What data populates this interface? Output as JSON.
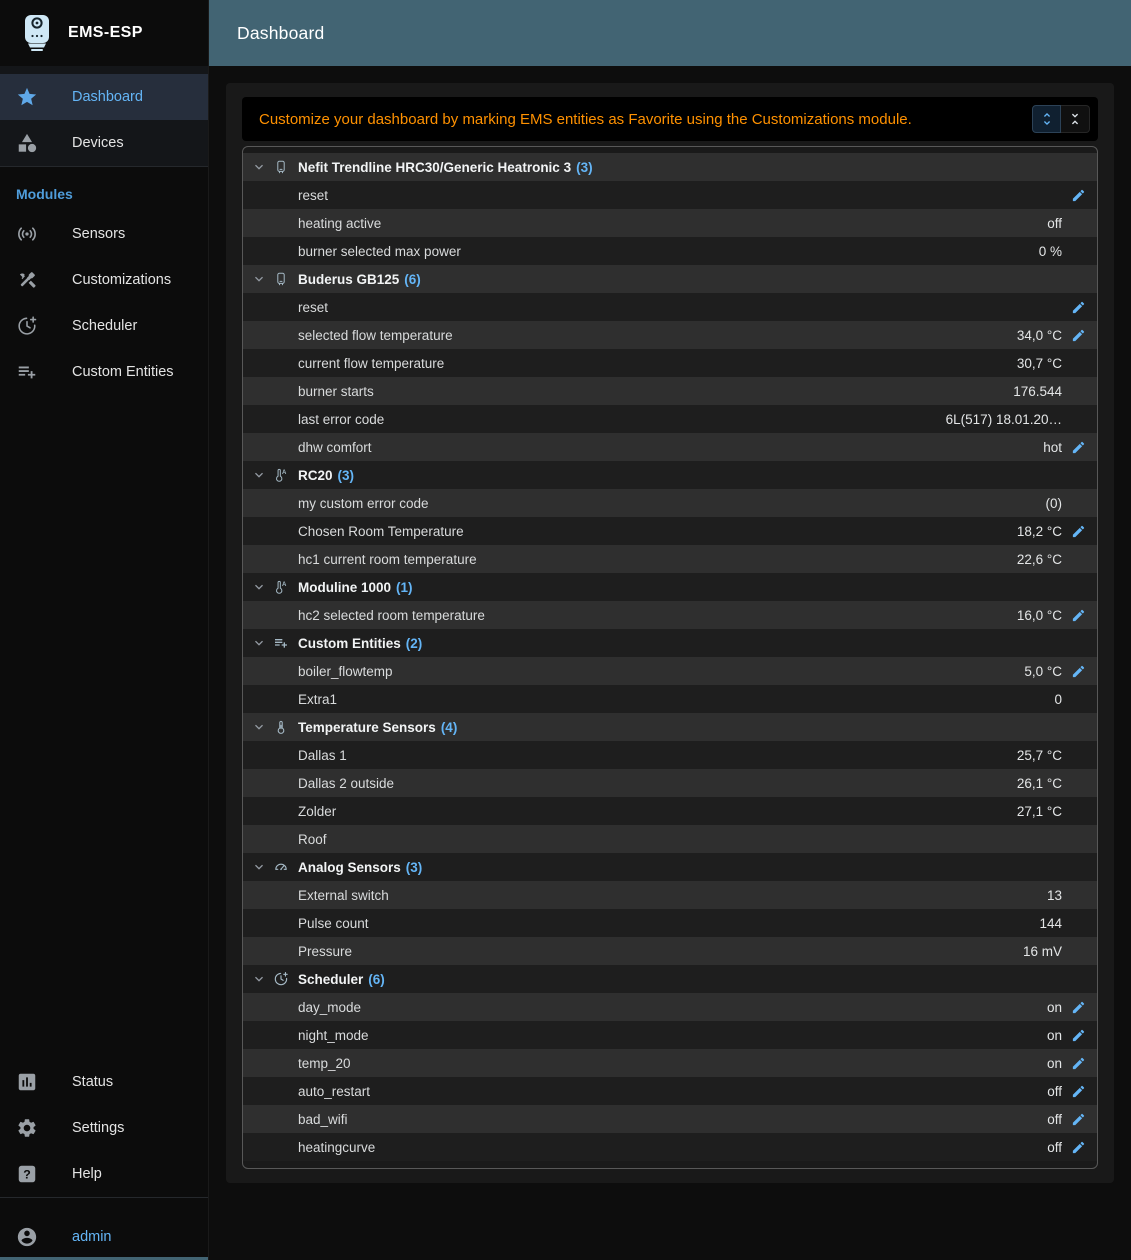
{
  "sidebar": {
    "app_title": "EMS-ESP",
    "modules_label": "Modules",
    "main_items": [
      {
        "label": "Dashboard",
        "icon": "star",
        "selected": true
      },
      {
        "label": "Devices",
        "icon": "category",
        "selected": false
      }
    ],
    "module_items": [
      {
        "label": "Sensors",
        "icon": "sensors"
      },
      {
        "label": "Customizations",
        "icon": "construction"
      },
      {
        "label": "Scheduler",
        "icon": "more-time"
      },
      {
        "label": "Custom Entities",
        "icon": "playlist-add"
      }
    ],
    "bottom_items": [
      {
        "label": "Status",
        "icon": "bar-chart"
      },
      {
        "label": "Settings",
        "icon": "gear"
      },
      {
        "label": "Help",
        "icon": "help"
      }
    ],
    "user": {
      "label": "admin",
      "icon": "account-circle"
    }
  },
  "topbar": {
    "title": "Dashboard"
  },
  "alert": {
    "message": "Customize your dashboard by marking EMS entities as Favorite using the Customizations module.",
    "expand_all_selected": true
  },
  "colors": {
    "accent_blue": "#64b5f6",
    "topbar_teal": "#426473",
    "alert_orange": "#ff9100",
    "row_light": "#2f2f2f",
    "row_dark": "#1e1e1e"
  },
  "dashboard": {
    "groups": [
      {
        "label": "Nefit Trendline HRC30/Generic Heatronic 3",
        "count": "(3)",
        "icon": "boiler",
        "rows": [
          {
            "name": "reset",
            "value": "",
            "editable": true
          },
          {
            "name": "heating active",
            "value": "off",
            "editable": false
          },
          {
            "name": "burner selected max power",
            "value": "0 %",
            "editable": false
          }
        ]
      },
      {
        "label": "Buderus GB125",
        "count": "(6)",
        "icon": "boiler",
        "rows": [
          {
            "name": "reset",
            "value": "",
            "editable": true
          },
          {
            "name": "selected flow temperature",
            "value": "34,0 °C",
            "editable": true
          },
          {
            "name": "current flow temperature",
            "value": "30,7 °C",
            "editable": false
          },
          {
            "name": "burner starts",
            "value": "176.544",
            "editable": false
          },
          {
            "name": "last error code",
            "value": "6L(517) 18.01.20…",
            "editable": false
          },
          {
            "name": "dhw comfort",
            "value": "hot",
            "editable": true
          }
        ]
      },
      {
        "label": "RC20",
        "count": "(3)",
        "icon": "thermostat-auto",
        "rows": [
          {
            "name": "my custom error code",
            "value": "(0)",
            "editable": false
          },
          {
            "name": "Chosen Room Temperature",
            "value": "18,2 °C",
            "editable": true
          },
          {
            "name": "hc1 current room temperature",
            "value": "22,6 °C",
            "editable": false
          }
        ]
      },
      {
        "label": "Moduline 1000",
        "count": "(1)",
        "icon": "thermostat-auto",
        "rows": [
          {
            "name": "hc2 selected room temperature",
            "value": "16,0 °C",
            "editable": true
          }
        ]
      },
      {
        "label": "Custom Entities",
        "count": "(2)",
        "icon": "playlist-add",
        "rows": [
          {
            "name": "boiler_flowtemp",
            "value": "5,0 °C",
            "editable": true
          },
          {
            "name": "Extra1",
            "value": "0",
            "editable": false
          }
        ]
      },
      {
        "label": "Temperature Sensors",
        "count": "(4)",
        "icon": "thermometer",
        "rows": [
          {
            "name": "Dallas 1",
            "value": "25,7 °C",
            "editable": false
          },
          {
            "name": "Dallas 2 outside",
            "value": "26,1 °C",
            "editable": false
          },
          {
            "name": "Zolder",
            "value": "27,1 °C",
            "editable": false
          },
          {
            "name": "Roof",
            "value": "",
            "editable": false
          }
        ]
      },
      {
        "label": "Analog Sensors",
        "count": "(3)",
        "icon": "gauge",
        "rows": [
          {
            "name": "External switch",
            "value": "13",
            "editable": false
          },
          {
            "name": "Pulse count",
            "value": "144",
            "editable": false
          },
          {
            "name": "Pressure",
            "value": "16 mV",
            "editable": false
          }
        ]
      },
      {
        "label": "Scheduler",
        "count": "(6)",
        "icon": "more-time",
        "rows": [
          {
            "name": "day_mode",
            "value": "on",
            "editable": true
          },
          {
            "name": "night_mode",
            "value": "on",
            "editable": true
          },
          {
            "name": "temp_20",
            "value": "on",
            "editable": true
          },
          {
            "name": "auto_restart",
            "value": "off",
            "editable": true
          },
          {
            "name": "bad_wifi",
            "value": "off",
            "editable": true
          },
          {
            "name": "heatingcurve",
            "value": "off",
            "editable": true
          }
        ]
      }
    ]
  }
}
